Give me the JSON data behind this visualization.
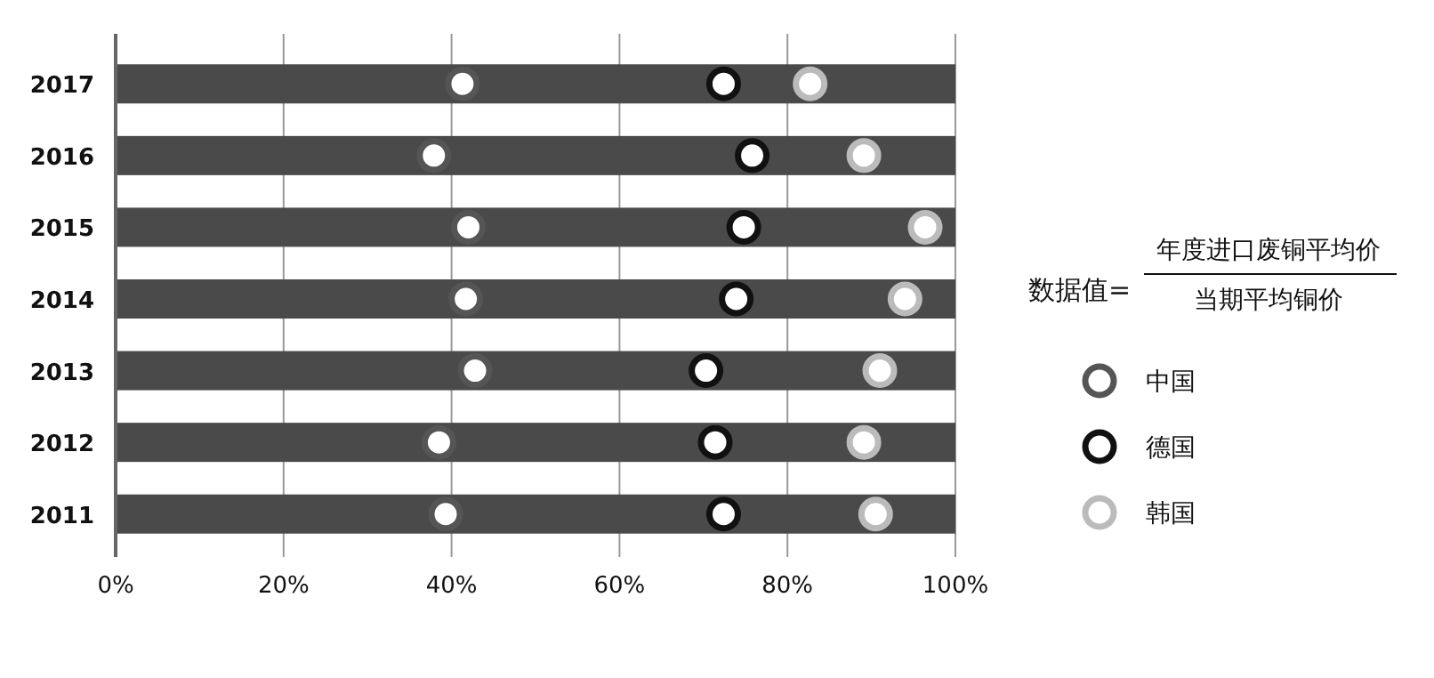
{
  "chart_data": {
    "type": "bar",
    "orientation": "horizontal",
    "categories": [
      "2017",
      "2016",
      "2015",
      "2014",
      "2013",
      "2012",
      "2011"
    ],
    "series": [
      {
        "color": "#4a4a4a",
        "values": [
          100,
          100,
          100,
          100,
          100,
          100,
          100
        ]
      },
      {
        "type": "scatter",
        "name": "中国",
        "color": "#555555",
        "values": [
          41.3,
          37.9,
          42.0,
          41.7,
          42.8,
          38.5,
          39.3
        ]
      },
      {
        "type": "scatter",
        "name": "德国",
        "color": "#111111",
        "values": [
          72.4,
          75.8,
          74.8,
          73.9,
          70.3,
          71.4,
          72.4
        ]
      },
      {
        "type": "scatter",
        "name": "韩国",
        "color": "#bbbbbb",
        "values": [
          82.7,
          89.1,
          96.4,
          94.0,
          91.0,
          89.1,
          90.5
        ]
      }
    ],
    "xlim": [
      0,
      100
    ],
    "xticks": [
      {
        "value": 0,
        "label": "0%"
      },
      {
        "value": 20,
        "label": "20%"
      },
      {
        "value": 40,
        "label": "40%"
      },
      {
        "value": 60,
        "label": "60%"
      },
      {
        "value": 80,
        "label": "80%"
      },
      {
        "value": 100,
        "label": "100%"
      }
    ],
    "grid": "x",
    "legend": "right",
    "marker": "circle",
    "annotations": [
      "数据值=",
      "年度进口废铜平均价",
      "当期平均铜价"
    ]
  }
}
